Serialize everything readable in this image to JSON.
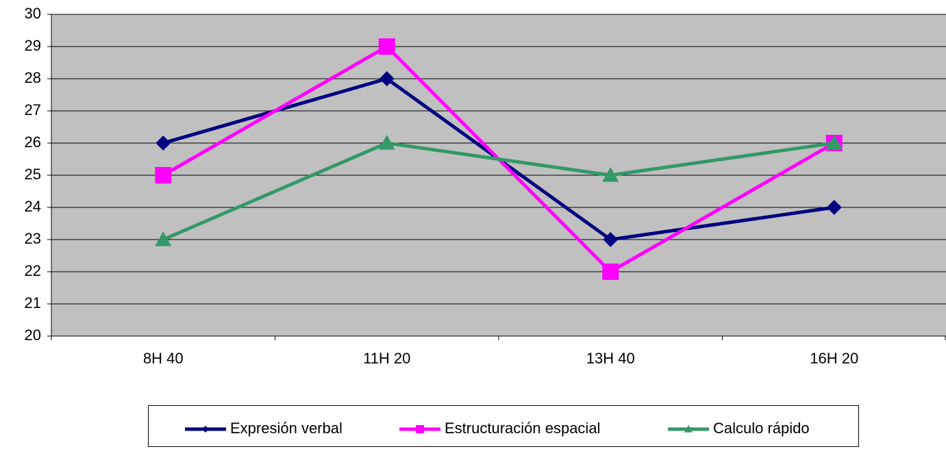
{
  "chart_data": {
    "type": "line",
    "categories": [
      "8H 40",
      "11H 20",
      "13H 40",
      "16H 20"
    ],
    "series": [
      {
        "name": "Expresión verbal",
        "color": "#000080",
        "marker": "diamond",
        "values": [
          26,
          28,
          23,
          24
        ]
      },
      {
        "name": "Estructuración espacial",
        "color": "#ff00ff",
        "marker": "square",
        "values": [
          25,
          29,
          22,
          26
        ]
      },
      {
        "name": "Calculo rápido",
        "color": "#339966",
        "marker": "triangle",
        "values": [
          23,
          26,
          25,
          26
        ]
      }
    ],
    "ylim": [
      20,
      30
    ],
    "yticks": [
      20,
      21,
      22,
      23,
      24,
      25,
      26,
      27,
      28,
      29,
      30
    ],
    "grid": true,
    "legend": "bottom"
  }
}
